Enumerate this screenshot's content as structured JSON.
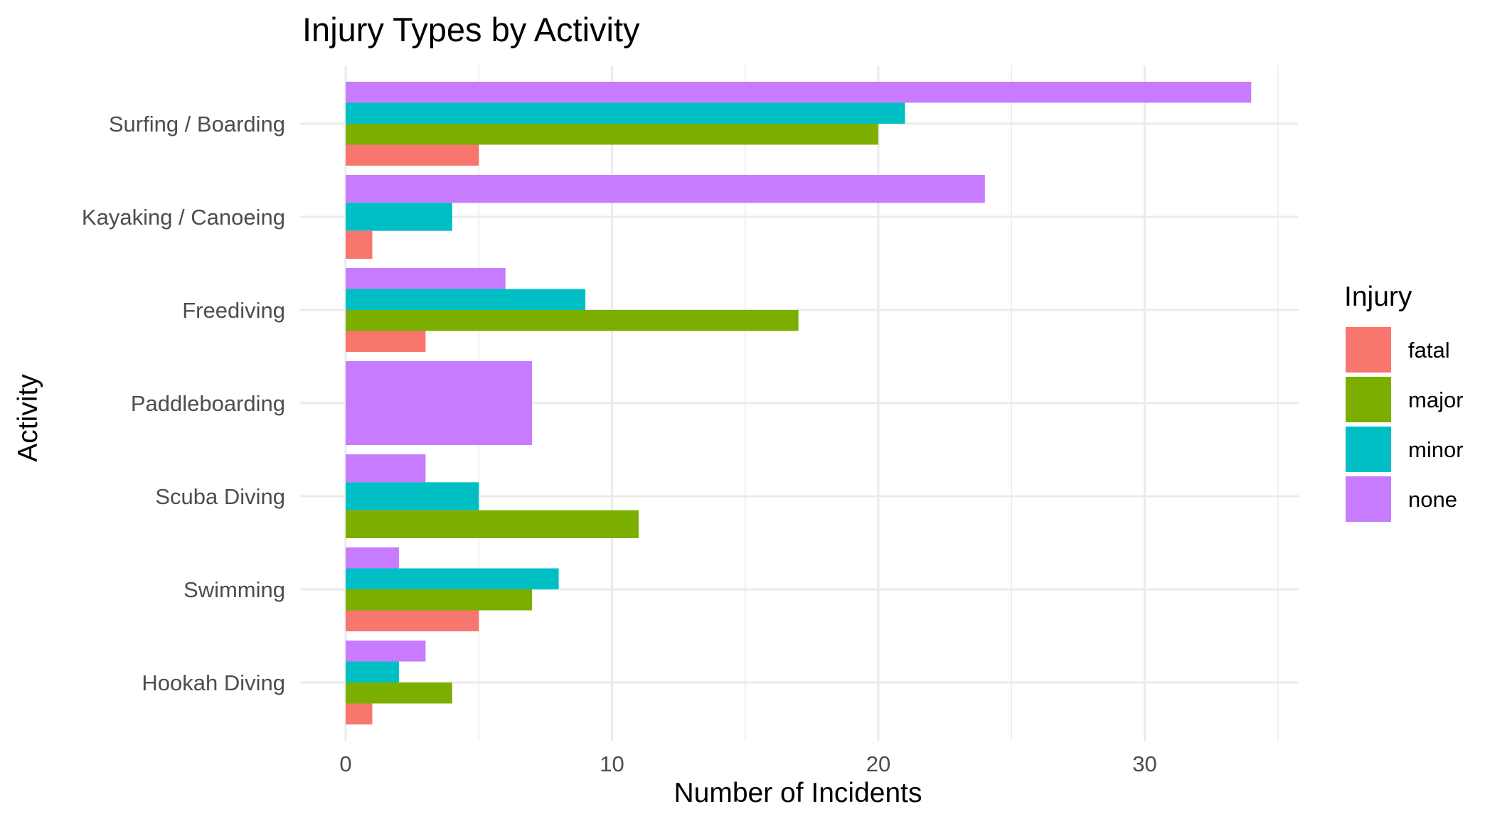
{
  "chart_data": {
    "type": "bar",
    "orientation": "horizontal",
    "title": "Injury Types by Activity",
    "xlabel": "Number of Incidents",
    "ylabel": "Activity",
    "xlim": [
      0,
      35
    ],
    "x_ticks": [
      0,
      10,
      20,
      30
    ],
    "grid": true,
    "legend_title": "Injury",
    "legend_position": "right",
    "categories": [
      "Surfing / Boarding",
      "Kayaking / Canoeing",
      "Freediving",
      "Paddleboarding",
      "Scuba Diving",
      "Swimming",
      "Hookah Diving"
    ],
    "series": [
      {
        "name": "fatal",
        "color": "#F8766D",
        "values": [
          5,
          1,
          3,
          null,
          null,
          5,
          1
        ]
      },
      {
        "name": "major",
        "color": "#7CAE00",
        "values": [
          20,
          null,
          17,
          null,
          11,
          7,
          4
        ]
      },
      {
        "name": "minor",
        "color": "#00BFC4",
        "values": [
          21,
          4,
          9,
          null,
          5,
          8,
          2
        ]
      },
      {
        "name": "none",
        "color": "#C77CFF",
        "values": [
          34,
          24,
          6,
          7,
          3,
          2,
          3
        ]
      }
    ]
  }
}
